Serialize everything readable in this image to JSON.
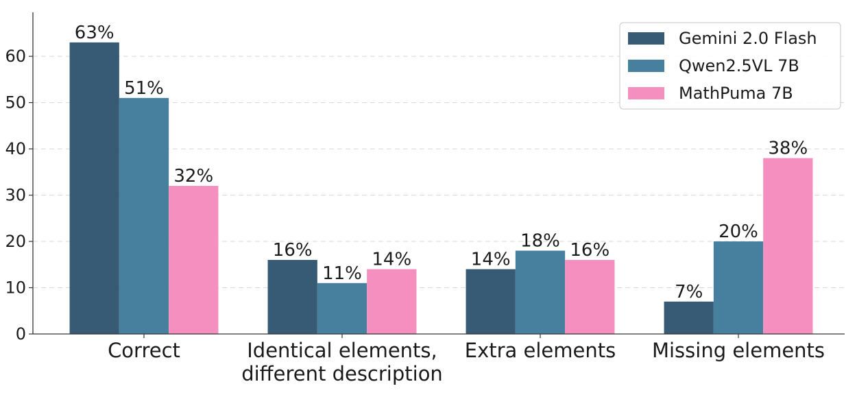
{
  "chart_data": {
    "type": "bar",
    "title": "",
    "xlabel": "",
    "ylabel": "",
    "categories": [
      [
        "Correct"
      ],
      [
        "Identical elements,",
        "different description"
      ],
      [
        "Extra elements"
      ],
      [
        "Missing elements"
      ]
    ],
    "series": [
      {
        "name": "Gemini 2.0 Flash",
        "color": "#375a75",
        "values": [
          63,
          16,
          14,
          7
        ],
        "labels": [
          "63%",
          "16%",
          "14%",
          "7%"
        ]
      },
      {
        "name": "Qwen2.5VL 7B",
        "color": "#46809e",
        "values": [
          51,
          11,
          18,
          20
        ],
        "labels": [
          "51%",
          "11%",
          "18%",
          "20%"
        ]
      },
      {
        "name": "MathPuma 7B",
        "color": "#f58fc0",
        "values": [
          32,
          14,
          16,
          38
        ],
        "labels": [
          "32%",
          "14%",
          "16%",
          "38%"
        ]
      }
    ],
    "ylim": [
      0,
      69.5
    ],
    "yticks": [
      0,
      10,
      20,
      30,
      40,
      50,
      60
    ],
    "grid": "y-dashed",
    "legend_position": "top-right"
  }
}
